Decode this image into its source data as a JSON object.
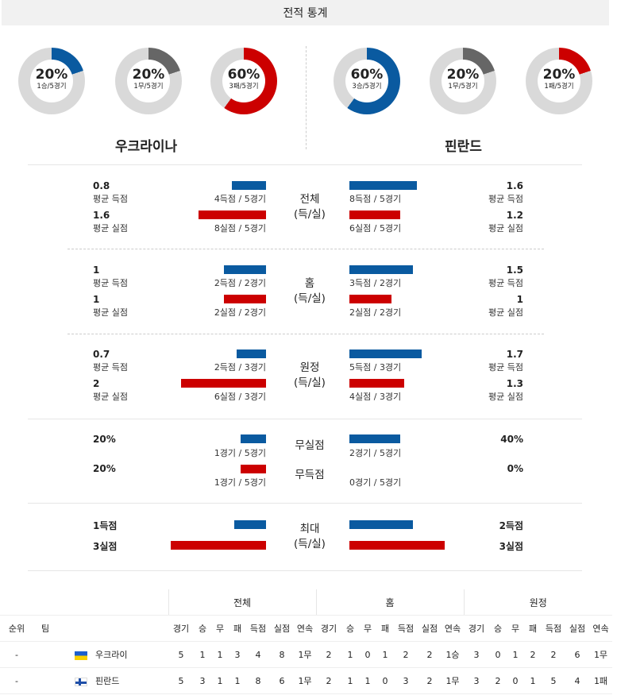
{
  "title": "전적 통계",
  "colors": {
    "win": "#0a5aa0",
    "draw": "#666666",
    "loss": "#cc0000",
    "track": "#d9d9d9"
  },
  "home": {
    "name": "우크라이나",
    "donuts": [
      {
        "pct": "20%",
        "sub": "1승/5경기",
        "fraction": 0.2,
        "color": "win"
      },
      {
        "pct": "20%",
        "sub": "1무/5경기",
        "fraction": 0.2,
        "color": "draw"
      },
      {
        "pct": "60%",
        "sub": "3패/5경기",
        "fraction": 0.6,
        "color": "loss"
      }
    ]
  },
  "away": {
    "name": "핀란드",
    "donuts": [
      {
        "pct": "60%",
        "sub": "3승/5경기",
        "fraction": 0.6,
        "color": "win"
      },
      {
        "pct": "20%",
        "sub": "1무/5경기",
        "fraction": 0.2,
        "color": "draw"
      },
      {
        "pct": "20%",
        "sub": "1패/5경기",
        "fraction": 0.2,
        "color": "loss"
      }
    ]
  },
  "sections": [
    {
      "title_1": "전체",
      "title_2": "(득/실)",
      "home": {
        "gf": "0.8",
        "gf_label": "평균 득점",
        "gf_detail": "4득점 / 5경기",
        "ga": "1.6",
        "ga_label": "평균 실점",
        "ga_detail": "8실점 / 5경기"
      },
      "away": {
        "gf": "1.6",
        "gf_label": "평균 득점",
        "gf_detail": "8득점 / 5경기",
        "ga": "1.2",
        "ga_label": "평균 실점",
        "ga_detail": "6실점 / 5경기"
      }
    },
    {
      "title_1": "홈",
      "title_2": "(득/실)",
      "home": {
        "gf": "1",
        "gf_label": "평균 득점",
        "gf_detail": "2득점 / 2경기",
        "ga": "1",
        "ga_label": "평균 실점",
        "ga_detail": "2실점 / 2경기"
      },
      "away": {
        "gf": "1.5",
        "gf_label": "평균 득점",
        "gf_detail": "3득점 / 2경기",
        "ga": "1",
        "ga_label": "평균 실점",
        "ga_detail": "2실점 / 2경기"
      }
    },
    {
      "title_1": "원정",
      "title_2": "(득/실)",
      "home": {
        "gf": "0.7",
        "gf_label": "평균 득점",
        "gf_detail": "2득점 / 3경기",
        "ga": "2",
        "ga_label": "평균 실점",
        "ga_detail": "6실점 / 3경기"
      },
      "away": {
        "gf": "1.7",
        "gf_label": "평균 득점",
        "gf_detail": "5득점 / 3경기",
        "ga": "1.3",
        "ga_label": "평균 실점",
        "ga_detail": "4실점 / 3경기"
      }
    }
  ],
  "clean": {
    "title_cs": "무실점",
    "title_fts": "무득점",
    "home": {
      "cs": "20%",
      "cs_detail": "1경기 / 5경기",
      "fts": "20%",
      "fts_detail": "1경기 / 5경기"
    },
    "away": {
      "cs": "40%",
      "cs_detail": "2경기 / 5경기",
      "fts": "0%",
      "fts_detail": "0경기 / 5경기"
    }
  },
  "max": {
    "title_1": "최대",
    "title_2": "(득/실)",
    "home": {
      "gf": "1득점",
      "ga": "3실점"
    },
    "away": {
      "gf": "2득점",
      "ga": "3실점"
    }
  },
  "standings": {
    "groups": [
      "전체",
      "홈",
      "원정"
    ],
    "col_rank": "순위",
    "col_team": "팀",
    "cols": [
      "경기",
      "승",
      "무",
      "패",
      "득점",
      "실점",
      "연속"
    ],
    "rows": [
      {
        "rank": "-",
        "team": "우크라이",
        "flag": "flag-ukraine",
        "all": [
          "5",
          "1",
          "1",
          "3",
          "4",
          "8",
          "1무"
        ],
        "home": [
          "2",
          "1",
          "0",
          "1",
          "2",
          "2",
          "1승"
        ],
        "away": [
          "3",
          "0",
          "1",
          "2",
          "2",
          "6",
          "1무"
        ]
      },
      {
        "rank": "-",
        "team": "핀란드",
        "flag": "flag-finland",
        "all": [
          "5",
          "3",
          "1",
          "1",
          "8",
          "6",
          "1무"
        ],
        "home": [
          "2",
          "1",
          "1",
          "0",
          "3",
          "2",
          "1무"
        ],
        "away": [
          "3",
          "2",
          "0",
          "1",
          "5",
          "4",
          "1패"
        ]
      }
    ]
  }
}
